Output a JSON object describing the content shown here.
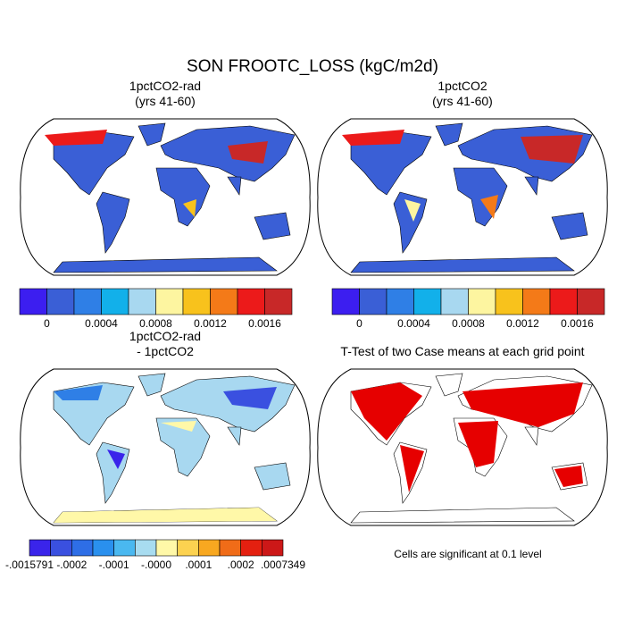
{
  "title": "SON FROOTC_LOSS (kgC/m2d)",
  "panels": [
    {
      "title": [
        "1pctCO2-rad",
        "(yrs 41-60)"
      ]
    },
    {
      "title": [
        "1pctCO2",
        "(yrs 41-60)"
      ]
    },
    {
      "title": [
        "1pctCO2-rad",
        "- 1pctCO2"
      ]
    },
    {
      "title": [
        "T-Test of two Case means at each grid point"
      ]
    }
  ],
  "colorbars": [
    {
      "colors": [
        "#3c1ef0",
        "#3a5fd6",
        "#2f7fe6",
        "#12b0ea",
        "#a8d8f0",
        "#fdf5a0",
        "#f8c21c",
        "#f47a18",
        "#ec1a1a",
        "#c82828"
      ],
      "labels": [
        "0",
        "0.0004",
        "0.0008",
        "0.0012",
        "0.0016"
      ]
    },
    {
      "colors": [
        "#3c1ef0",
        "#3a5fd6",
        "#2f7fe6",
        "#12b0ea",
        "#a8d8f0",
        "#fdf5a0",
        "#f8c21c",
        "#f47a18",
        "#ec1a1a",
        "#c82828"
      ],
      "labels": [
        "0",
        "0.0004",
        "0.0008",
        "0.0012",
        "0.0016"
      ]
    },
    {
      "colors": [
        "#3a24ea",
        "#3a50e0",
        "#2e6ee6",
        "#2a90ee",
        "#4ab8f0",
        "#a8dcf0",
        "#fff8a8",
        "#fcd250",
        "#f8a820",
        "#f06c18",
        "#e42010",
        "#cc1818"
      ],
      "labels": [
        "-.0015791",
        "-.0002",
        "-.0001",
        "-.0000",
        ".0001",
        ".0002",
        ".0007349"
      ]
    }
  ],
  "note": "Cells are significant at 0.1 level"
}
